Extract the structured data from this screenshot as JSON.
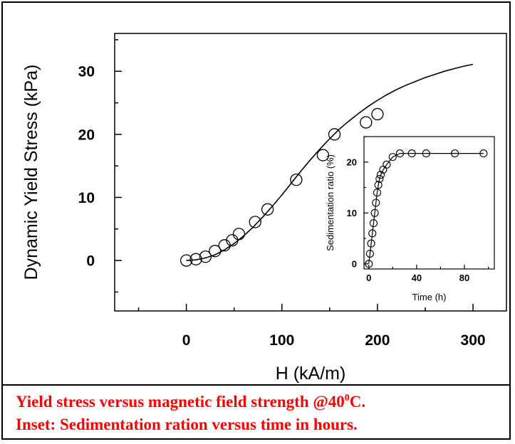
{
  "caption": {
    "line1_main": "Yield stress versus magnetic field strength @40",
    "line1_sup": "0",
    "line1_end": "C.",
    "line2": "Inset: Sedimentation ration versus time in hours.",
    "color": "#ff0000"
  },
  "chart_data": [
    {
      "id": "main",
      "type": "scatter",
      "xlabel": "H (kA/m)",
      "ylabel": "Dynamic Yield Stress (kPa)",
      "xlim": [
        -75,
        335
      ],
      "ylim": [
        -8,
        36
      ],
      "xticks": [
        0,
        100,
        200,
        300
      ],
      "yticks": [
        0,
        10,
        20,
        30
      ],
      "grid": false,
      "series": [
        {
          "marker": "open-circle",
          "x": [
            0,
            10,
            20,
            30,
            40,
            48,
            55,
            72,
            85,
            115,
            143,
            155,
            188,
            200
          ],
          "y": [
            0,
            0.2,
            0.6,
            1.5,
            2.4,
            3.2,
            4.2,
            6.1,
            8.1,
            12.8,
            16.7,
            20.0,
            21.9,
            23.2
          ]
        },
        {
          "marker": "line",
          "x": [
            0,
            10,
            20,
            30,
            40,
            50,
            60,
            70,
            80,
            90,
            100,
            110,
            120,
            130,
            140,
            150,
            160,
            170,
            180,
            190,
            200,
            210,
            220,
            230,
            240,
            250,
            260,
            270,
            280,
            290,
            300
          ],
          "y": [
            0,
            0.1,
            0.4,
            0.9,
            1.7,
            2.7,
            3.9,
            5.3,
            6.9,
            8.6,
            10.4,
            12.3,
            14.2,
            16.0,
            17.7,
            19.3,
            20.8,
            22.1,
            23.3,
            24.4,
            25.4,
            26.3,
            27.1,
            27.8,
            28.4,
            29.0,
            29.5,
            30.0,
            30.4,
            30.8,
            31.1
          ]
        }
      ]
    },
    {
      "id": "inset",
      "type": "scatter",
      "xlabel": "Time (h)",
      "ylabel": "Sedimentation ratio (%)",
      "xlim": [
        -4,
        105
      ],
      "ylim": [
        -1,
        25
      ],
      "xticks": [
        0,
        40,
        80
      ],
      "yticks": [
        0,
        10,
        20
      ],
      "grid": false,
      "series": [
        {
          "marker": "open-circle",
          "x": [
            0,
            1,
            2,
            3,
            4,
            5,
            6,
            7,
            8,
            9,
            10,
            12,
            15,
            20,
            26,
            36,
            48,
            72,
            96
          ],
          "y": [
            0,
            2,
            4,
            6,
            8,
            10,
            12,
            14,
            15.5,
            16.7,
            17.5,
            18.5,
            19.5,
            21.0,
            21.7,
            21.7,
            21.7,
            21.7,
            21.7
          ]
        },
        {
          "marker": "line",
          "x": [
            0,
            1,
            2,
            3,
            4,
            5,
            6,
            7,
            8,
            9,
            10,
            12,
            15,
            20,
            26,
            36,
            48,
            72,
            96
          ],
          "y": [
            0,
            2,
            4,
            6,
            8,
            10,
            12,
            14,
            15.5,
            16.7,
            17.5,
            18.5,
            19.5,
            21.0,
            21.7,
            21.7,
            21.7,
            21.7,
            21.7
          ]
        }
      ]
    }
  ]
}
